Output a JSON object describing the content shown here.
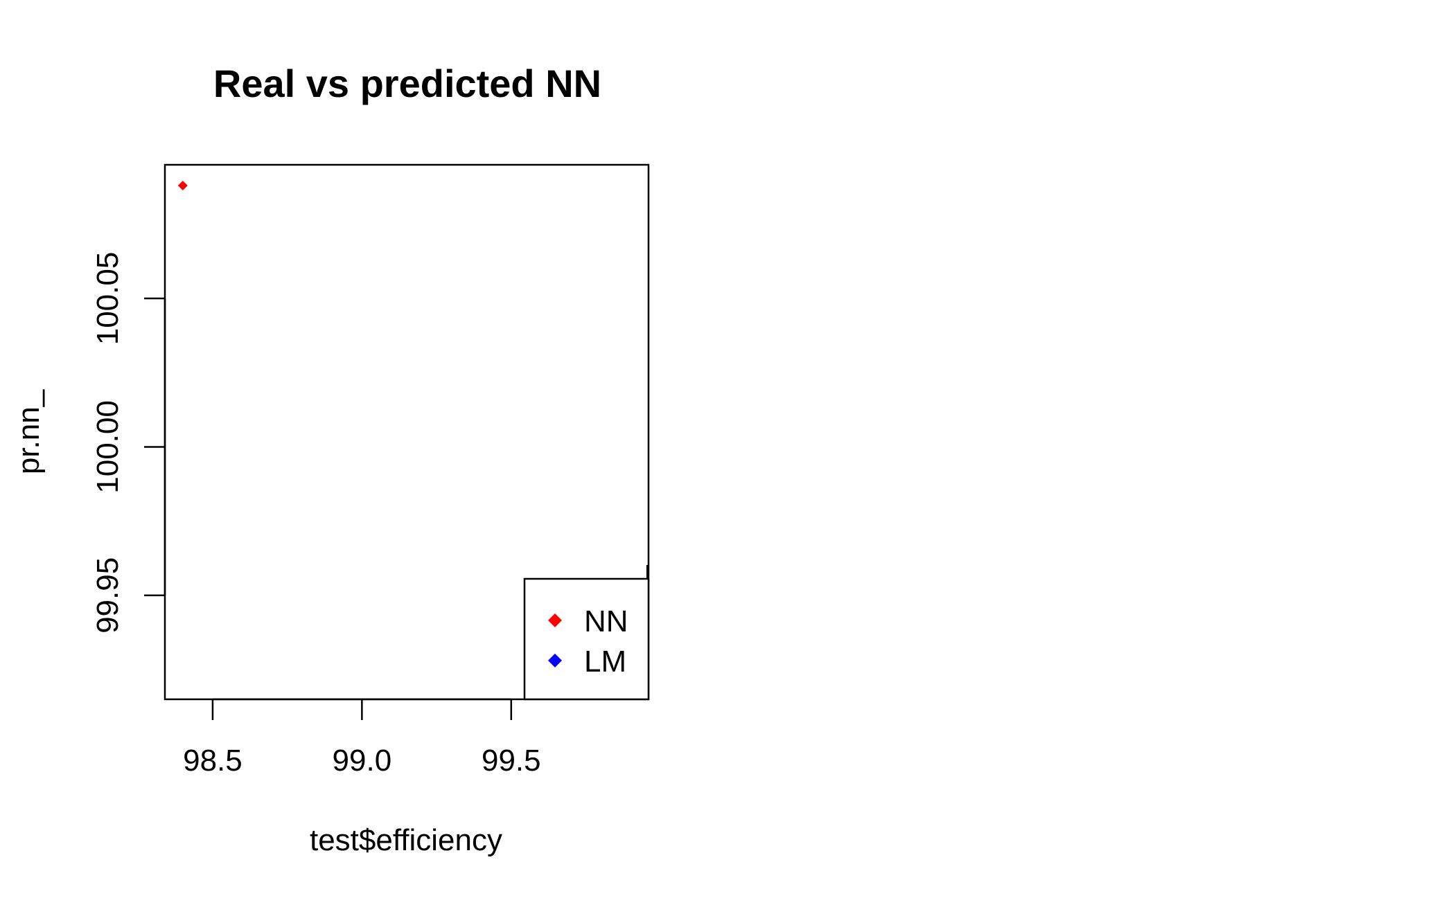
{
  "chart_data": {
    "type": "scatter",
    "title": "Real vs predicted NN",
    "xlabel": "test$efficiency",
    "ylabel": "pr.nn_",
    "xlim": [
      98.34,
      99.96
    ],
    "ylim": [
      99.915,
      100.095
    ],
    "x_ticks": [
      "98.5",
      "99.0",
      "99.5"
    ],
    "y_ticks": [
      "99.95",
      "100.00",
      "100.05"
    ],
    "x_tick_values": [
      98.5,
      99.0,
      99.5
    ],
    "y_tick_values": [
      99.95,
      100.0,
      100.05
    ],
    "grid": false,
    "legend": {
      "position": "bottom-right",
      "entries": [
        {
          "label": "NN",
          "color": "#ff0000",
          "marker": "diamond"
        },
        {
          "label": "LM",
          "color": "#0000ff",
          "marker": "diamond"
        }
      ]
    },
    "series": [
      {
        "name": "NN",
        "color": "#ff0000",
        "marker": "diamond",
        "points": [
          {
            "x": 98.4,
            "y": 100.088
          }
        ]
      }
    ]
  }
}
